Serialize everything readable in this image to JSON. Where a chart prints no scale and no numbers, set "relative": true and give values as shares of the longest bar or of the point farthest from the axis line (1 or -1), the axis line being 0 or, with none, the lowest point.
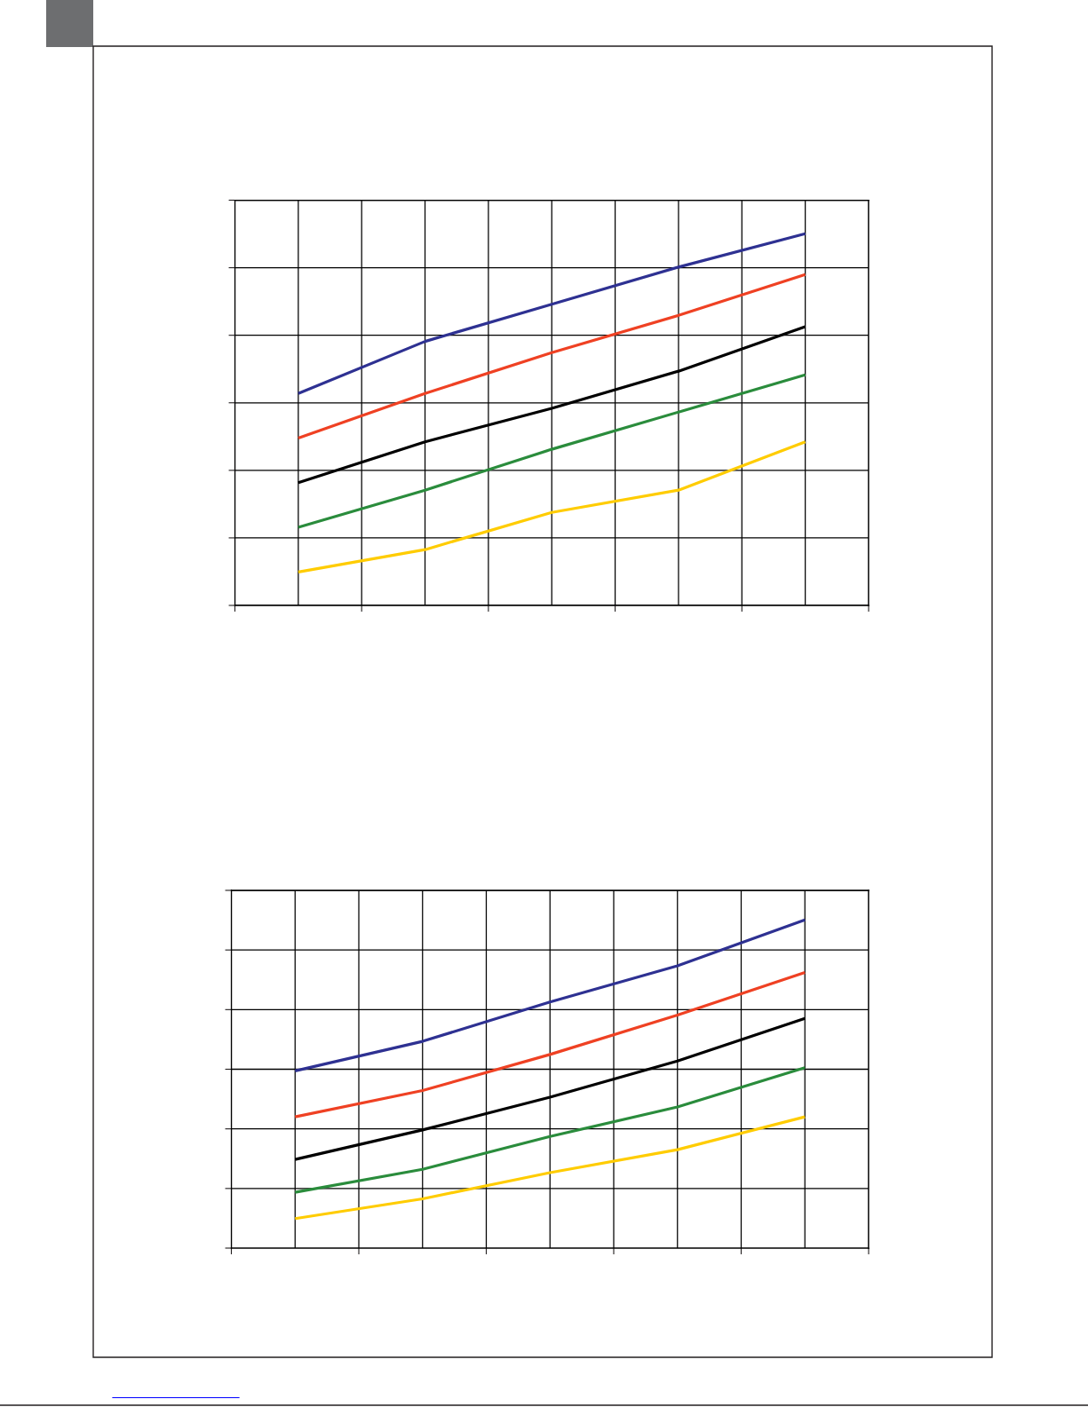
{
  "chart_data": [
    {
      "type": "line",
      "relative": true,
      "categories": [
        null,
        null,
        null,
        null,
        null
      ],
      "grid": true,
      "tick_labels": false,
      "series": [
        {
          "color": "#2e3192",
          "values": [
            0.57,
            0.71,
            0.81,
            0.91,
            1.0
          ]
        },
        {
          "color": "#ef4123",
          "values": [
            0.45,
            0.57,
            0.68,
            0.78,
            0.89
          ]
        },
        {
          "color": "#000000",
          "values": [
            0.33,
            0.44,
            0.53,
            0.63,
            0.75
          ]
        },
        {
          "color": "#2a8c3c",
          "values": [
            0.21,
            0.31,
            0.42,
            0.52,
            0.62
          ]
        },
        {
          "color": "#ffcc00",
          "values": [
            0.09,
            0.15,
            0.25,
            0.31,
            0.44
          ]
        }
      ]
    },
    {
      "type": "line",
      "relative": true,
      "categories": [
        null,
        null,
        null,
        null,
        null
      ],
      "grid": true,
      "tick_labels": false,
      "series": [
        {
          "color": "#2e3192",
          "values": [
            0.54,
            0.63,
            0.75,
            0.86,
            1.0
          ]
        },
        {
          "color": "#ef4123",
          "values": [
            0.4,
            0.48,
            0.59,
            0.71,
            0.84
          ]
        },
        {
          "color": "#000000",
          "values": [
            0.27,
            0.36,
            0.46,
            0.57,
            0.7
          ]
        },
        {
          "color": "#2a8c3c",
          "values": [
            0.17,
            0.24,
            0.34,
            0.43,
            0.55
          ]
        },
        {
          "color": "#ffcc00",
          "values": [
            0.09,
            0.15,
            0.23,
            0.3,
            0.4
          ]
        }
      ]
    }
  ]
}
